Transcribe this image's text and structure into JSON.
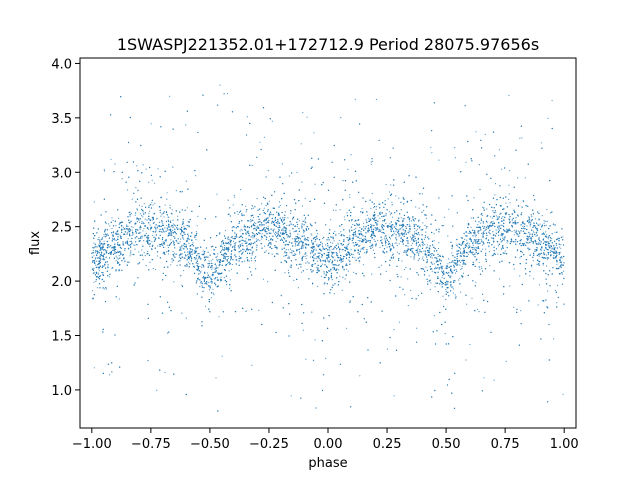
{
  "chart_data": {
    "type": "scatter",
    "title": "1SWASPJ221352.01+172712.9 Period 28075.97656s",
    "xlabel": "phase",
    "ylabel": "flux",
    "xlim": [
      -1.05,
      1.05
    ],
    "ylim": [
      0.65,
      4.05
    ],
    "xticks": [
      -1.0,
      -0.75,
      -0.5,
      -0.25,
      0.0,
      0.25,
      0.5,
      0.75,
      1.0
    ],
    "xtick_labels": [
      "−1.00",
      "−0.75",
      "−0.50",
      "−0.25",
      "0.00",
      "0.25",
      "0.50",
      "0.75",
      "1.00"
    ],
    "yticks": [
      1.0,
      1.5,
      2.0,
      2.5,
      3.0,
      3.5,
      4.0
    ],
    "ytick_labels": [
      "1.0",
      "1.5",
      "2.0",
      "2.5",
      "3.0",
      "3.5",
      "4.0"
    ],
    "grid": false,
    "marker_color": "#1f77b4",
    "series": [
      {
        "x_range": [
          -1.0,
          1.0
        ],
        "light_curve_phase": [
          -1.0,
          -0.9,
          -0.8,
          -0.75,
          -0.7,
          -0.6,
          -0.5,
          -0.4,
          -0.3,
          -0.25,
          -0.2,
          -0.1,
          0.0,
          0.1,
          0.2,
          0.25,
          0.3,
          0.4,
          0.5,
          0.6,
          0.7,
          0.75,
          0.8,
          0.9,
          1.0
        ],
        "light_curve_flux": [
          2.15,
          2.35,
          2.47,
          2.5,
          2.47,
          2.35,
          2.0,
          2.35,
          2.47,
          2.5,
          2.47,
          2.35,
          2.15,
          2.35,
          2.47,
          2.5,
          2.47,
          2.35,
          2.0,
          2.35,
          2.47,
          2.5,
          2.47,
          2.35,
          2.15
        ],
        "scatter_min": 0.8,
        "scatter_max": 3.9
      }
    ]
  }
}
